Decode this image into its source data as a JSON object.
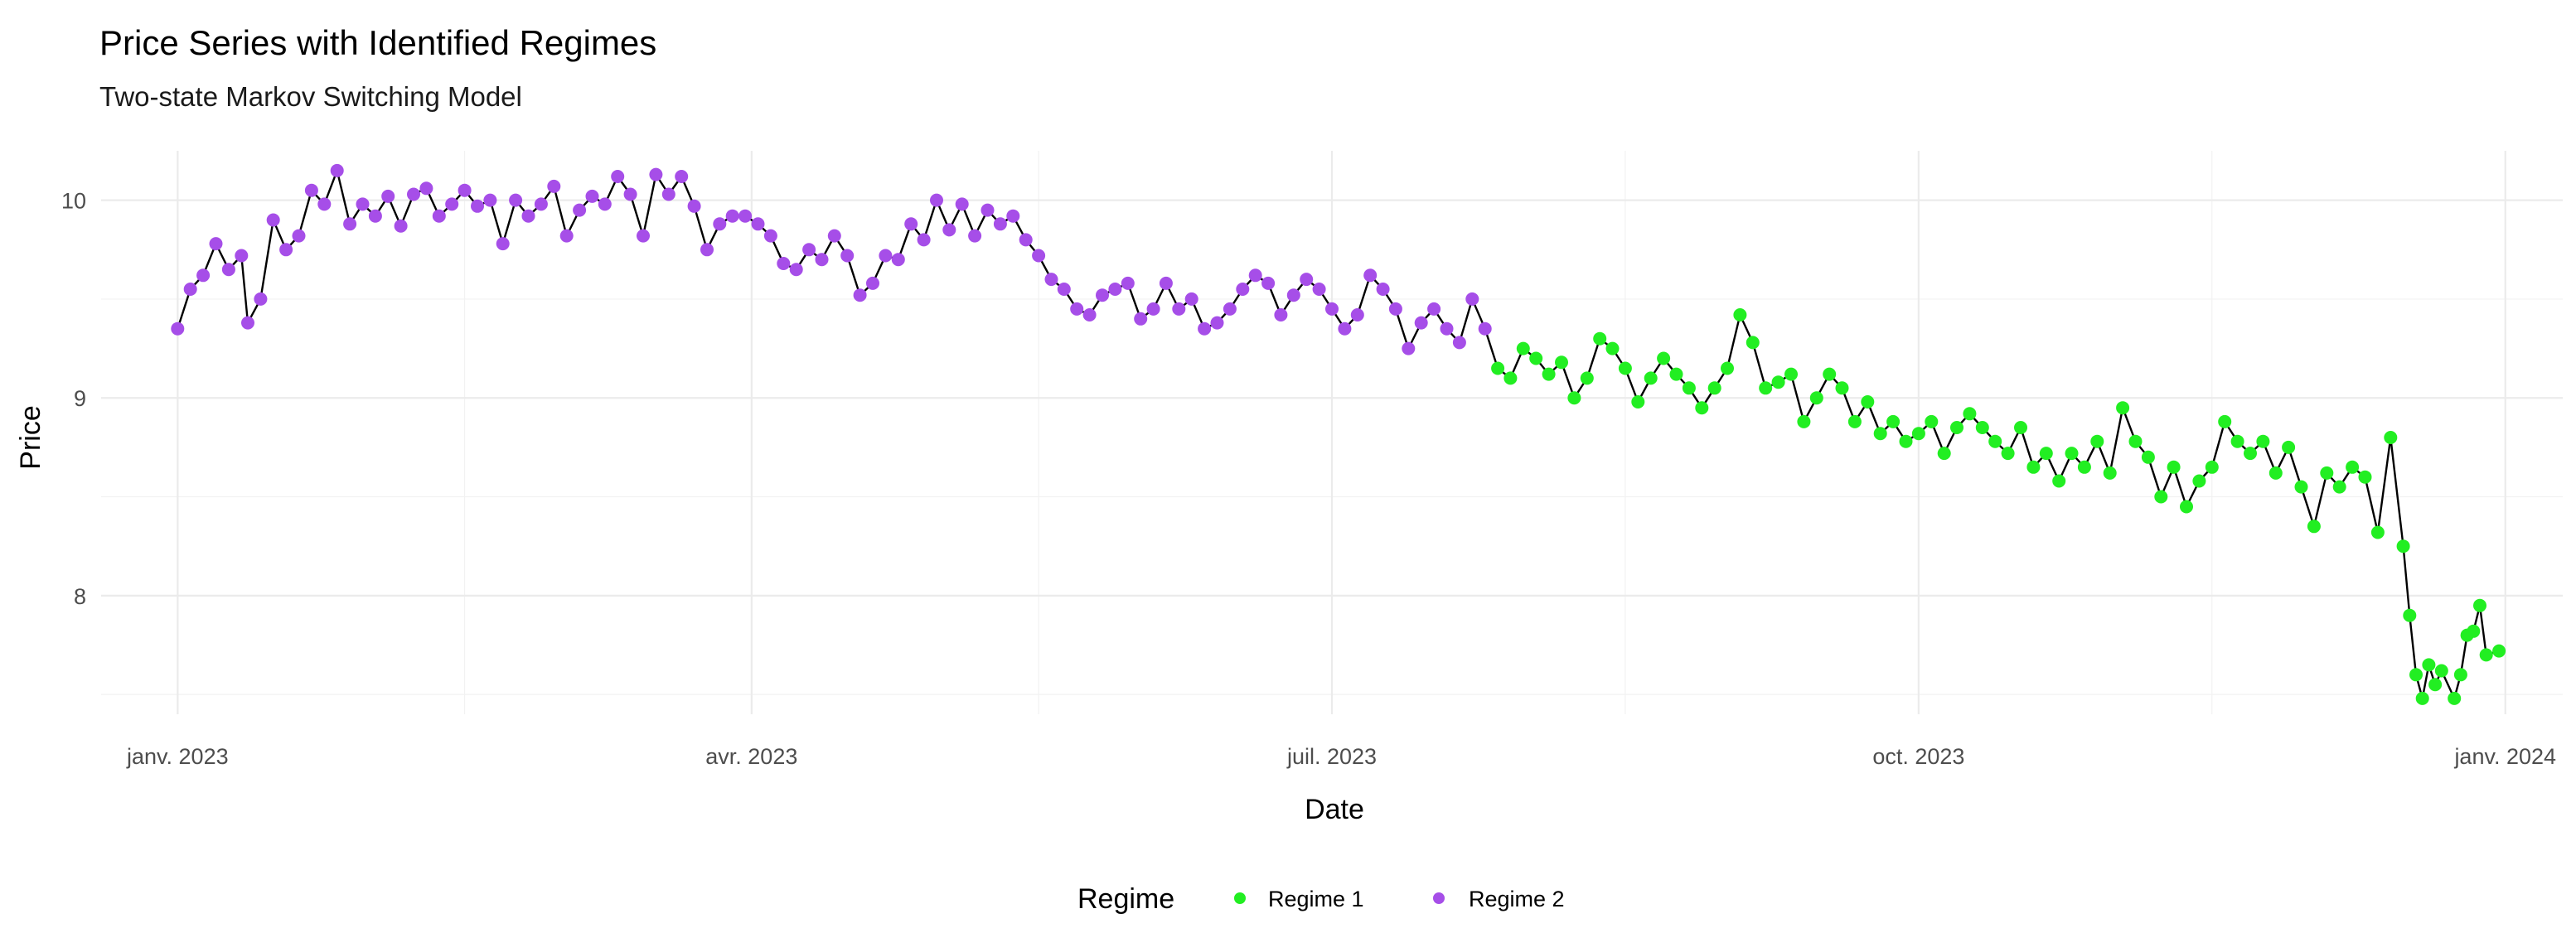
{
  "chart_data": {
    "type": "line",
    "title": "Price Series with Identified Regimes",
    "subtitle": "Two-state Markov Switching Model",
    "xlabel": "Date",
    "ylabel": "Price",
    "xlim": [
      "2022-12-20",
      "2024-01-10"
    ],
    "ylim": [
      7.4,
      10.25
    ],
    "y_ticks": [
      8,
      9,
      10
    ],
    "x_ticks": [
      {
        "date": "2023-01-01",
        "label": "janv. 2023"
      },
      {
        "date": "2023-04-01",
        "label": "avr. 2023"
      },
      {
        "date": "2023-07-01",
        "label": "juil. 2023"
      },
      {
        "date": "2023-10-01",
        "label": "oct. 2023"
      },
      {
        "date": "2024-01-01",
        "label": "janv. 2024"
      }
    ],
    "x_minor_ticks": [
      "2023-02-15",
      "2023-05-16",
      "2023-08-16",
      "2023-11-16"
    ],
    "grid": true,
    "legend": {
      "title": "Regime",
      "position": "bottom",
      "entries": [
        {
          "label": "Regime 1",
          "color": "#22ee22"
        },
        {
          "label": "Regime 2",
          "color": "#a64ee8"
        }
      ]
    },
    "line_color": "#000000",
    "series": [
      {
        "name": "Regime 2",
        "color": "#a64ee8",
        "points": [
          [
            "2023-01-01",
            9.35
          ],
          [
            "2023-01-03",
            9.55
          ],
          [
            "2023-01-05",
            9.62
          ],
          [
            "2023-01-07",
            9.78
          ],
          [
            "2023-01-09",
            9.65
          ],
          [
            "2023-01-11",
            9.72
          ],
          [
            "2023-01-12",
            9.38
          ],
          [
            "2023-01-14",
            9.5
          ],
          [
            "2023-01-16",
            9.9
          ],
          [
            "2023-01-18",
            9.75
          ],
          [
            "2023-01-20",
            9.82
          ],
          [
            "2023-01-22",
            10.05
          ],
          [
            "2023-01-24",
            9.98
          ],
          [
            "2023-01-26",
            10.15
          ],
          [
            "2023-01-28",
            9.88
          ],
          [
            "2023-01-30",
            9.98
          ],
          [
            "2023-02-01",
            9.92
          ],
          [
            "2023-02-03",
            10.02
          ],
          [
            "2023-02-05",
            9.87
          ],
          [
            "2023-02-07",
            10.03
          ],
          [
            "2023-02-09",
            10.06
          ],
          [
            "2023-02-11",
            9.92
          ],
          [
            "2023-02-13",
            9.98
          ],
          [
            "2023-02-15",
            10.05
          ],
          [
            "2023-02-17",
            9.97
          ],
          [
            "2023-02-19",
            10.0
          ],
          [
            "2023-02-21",
            9.78
          ],
          [
            "2023-02-23",
            10.0
          ],
          [
            "2023-02-25",
            9.92
          ],
          [
            "2023-02-27",
            9.98
          ],
          [
            "2023-03-01",
            10.07
          ],
          [
            "2023-03-03",
            9.82
          ],
          [
            "2023-03-05",
            9.95
          ],
          [
            "2023-03-07",
            10.02
          ],
          [
            "2023-03-09",
            9.98
          ],
          [
            "2023-03-11",
            10.12
          ],
          [
            "2023-03-13",
            10.03
          ],
          [
            "2023-03-15",
            9.82
          ],
          [
            "2023-03-17",
            10.13
          ],
          [
            "2023-03-19",
            10.03
          ],
          [
            "2023-03-21",
            10.12
          ],
          [
            "2023-03-23",
            9.97
          ],
          [
            "2023-03-25",
            9.75
          ],
          [
            "2023-03-27",
            9.88
          ],
          [
            "2023-03-29",
            9.92
          ],
          [
            "2023-03-31",
            9.92
          ],
          [
            "2023-04-02",
            9.88
          ],
          [
            "2023-04-04",
            9.82
          ],
          [
            "2023-04-06",
            9.68
          ],
          [
            "2023-04-08",
            9.65
          ],
          [
            "2023-04-10",
            9.75
          ],
          [
            "2023-04-12",
            9.7
          ],
          [
            "2023-04-14",
            9.82
          ],
          [
            "2023-04-16",
            9.72
          ],
          [
            "2023-04-18",
            9.52
          ],
          [
            "2023-04-20",
            9.58
          ],
          [
            "2023-04-22",
            9.72
          ],
          [
            "2023-04-24",
            9.7
          ],
          [
            "2023-04-26",
            9.88
          ],
          [
            "2023-04-28",
            9.8
          ],
          [
            "2023-04-30",
            10.0
          ],
          [
            "2023-05-02",
            9.85
          ],
          [
            "2023-05-04",
            9.98
          ],
          [
            "2023-05-06",
            9.82
          ],
          [
            "2023-05-08",
            9.95
          ],
          [
            "2023-05-10",
            9.88
          ],
          [
            "2023-05-12",
            9.92
          ],
          [
            "2023-05-14",
            9.8
          ],
          [
            "2023-05-16",
            9.72
          ],
          [
            "2023-05-18",
            9.6
          ],
          [
            "2023-05-20",
            9.55
          ],
          [
            "2023-05-22",
            9.45
          ],
          [
            "2023-05-24",
            9.42
          ],
          [
            "2023-05-26",
            9.52
          ],
          [
            "2023-05-28",
            9.55
          ],
          [
            "2023-05-30",
            9.58
          ],
          [
            "2023-06-01",
            9.4
          ],
          [
            "2023-06-03",
            9.45
          ],
          [
            "2023-06-05",
            9.58
          ],
          [
            "2023-06-07",
            9.45
          ],
          [
            "2023-06-09",
            9.5
          ],
          [
            "2023-06-11",
            9.35
          ],
          [
            "2023-06-13",
            9.38
          ],
          [
            "2023-06-15",
            9.45
          ],
          [
            "2023-06-17",
            9.55
          ],
          [
            "2023-06-19",
            9.62
          ],
          [
            "2023-06-21",
            9.58
          ],
          [
            "2023-06-23",
            9.42
          ],
          [
            "2023-06-25",
            9.52
          ],
          [
            "2023-06-27",
            9.6
          ],
          [
            "2023-06-29",
            9.55
          ],
          [
            "2023-07-01",
            9.45
          ],
          [
            "2023-07-03",
            9.35
          ],
          [
            "2023-07-05",
            9.42
          ],
          [
            "2023-07-07",
            9.62
          ],
          [
            "2023-07-09",
            9.55
          ],
          [
            "2023-07-11",
            9.45
          ],
          [
            "2023-07-13",
            9.25
          ],
          [
            "2023-07-15",
            9.38
          ],
          [
            "2023-07-17",
            9.45
          ],
          [
            "2023-07-19",
            9.35
          ],
          [
            "2023-07-21",
            9.28
          ],
          [
            "2023-07-23",
            9.5
          ],
          [
            "2023-07-25",
            9.35
          ]
        ]
      },
      {
        "name": "Regime 1",
        "color": "#22ee22",
        "points": [
          [
            "2023-07-27",
            9.15
          ],
          [
            "2023-07-29",
            9.1
          ],
          [
            "2023-07-31",
            9.25
          ],
          [
            "2023-08-02",
            9.2
          ],
          [
            "2023-08-04",
            9.12
          ],
          [
            "2023-08-06",
            9.18
          ],
          [
            "2023-08-08",
            9.0
          ],
          [
            "2023-08-10",
            9.1
          ],
          [
            "2023-08-12",
            9.3
          ],
          [
            "2023-08-14",
            9.25
          ],
          [
            "2023-08-16",
            9.15
          ],
          [
            "2023-08-18",
            8.98
          ],
          [
            "2023-08-20",
            9.1
          ],
          [
            "2023-08-22",
            9.2
          ],
          [
            "2023-08-24",
            9.12
          ],
          [
            "2023-08-26",
            9.05
          ],
          [
            "2023-08-28",
            8.95
          ],
          [
            "2023-08-30",
            9.05
          ],
          [
            "2023-09-01",
            9.15
          ],
          [
            "2023-09-03",
            9.42
          ],
          [
            "2023-09-05",
            9.28
          ],
          [
            "2023-09-07",
            9.05
          ],
          [
            "2023-09-09",
            9.08
          ],
          [
            "2023-09-11",
            9.12
          ],
          [
            "2023-09-13",
            8.88
          ],
          [
            "2023-09-15",
            9.0
          ],
          [
            "2023-09-17",
            9.12
          ],
          [
            "2023-09-19",
            9.05
          ],
          [
            "2023-09-21",
            8.88
          ],
          [
            "2023-09-23",
            8.98
          ],
          [
            "2023-09-25",
            8.82
          ],
          [
            "2023-09-27",
            8.88
          ],
          [
            "2023-09-29",
            8.78
          ],
          [
            "2023-10-01",
            8.82
          ],
          [
            "2023-10-03",
            8.88
          ],
          [
            "2023-10-05",
            8.72
          ],
          [
            "2023-10-07",
            8.85
          ],
          [
            "2023-10-09",
            8.92
          ],
          [
            "2023-10-11",
            8.85
          ],
          [
            "2023-10-13",
            8.78
          ],
          [
            "2023-10-15",
            8.72
          ],
          [
            "2023-10-17",
            8.85
          ],
          [
            "2023-10-19",
            8.65
          ],
          [
            "2023-10-21",
            8.72
          ],
          [
            "2023-10-23",
            8.58
          ],
          [
            "2023-10-25",
            8.72
          ],
          [
            "2023-10-27",
            8.65
          ],
          [
            "2023-10-29",
            8.78
          ],
          [
            "2023-10-31",
            8.62
          ],
          [
            "2023-11-02",
            8.95
          ],
          [
            "2023-11-04",
            8.78
          ],
          [
            "2023-11-06",
            8.7
          ],
          [
            "2023-11-08",
            8.5
          ],
          [
            "2023-11-10",
            8.65
          ],
          [
            "2023-11-12",
            8.45
          ],
          [
            "2023-11-14",
            8.58
          ],
          [
            "2023-11-16",
            8.65
          ],
          [
            "2023-11-18",
            8.88
          ],
          [
            "2023-11-20",
            8.78
          ],
          [
            "2023-11-22",
            8.72
          ],
          [
            "2023-11-24",
            8.78
          ],
          [
            "2023-11-26",
            8.62
          ],
          [
            "2023-11-28",
            8.75
          ],
          [
            "2023-11-30",
            8.55
          ],
          [
            "2023-12-02",
            8.35
          ],
          [
            "2023-12-04",
            8.62
          ],
          [
            "2023-12-06",
            8.55
          ],
          [
            "2023-12-08",
            8.65
          ],
          [
            "2023-12-10",
            8.6
          ],
          [
            "2023-12-12",
            8.32
          ],
          [
            "2023-12-14",
            8.8
          ],
          [
            "2023-12-16",
            8.25
          ],
          [
            "2023-12-17",
            7.9
          ],
          [
            "2023-12-18",
            7.6
          ],
          [
            "2023-12-19",
            7.48
          ],
          [
            "2023-12-20",
            7.65
          ],
          [
            "2023-12-21",
            7.55
          ],
          [
            "2023-12-22",
            7.62
          ],
          [
            "2023-12-24",
            7.48
          ],
          [
            "2023-12-25",
            7.6
          ],
          [
            "2023-12-26",
            7.8
          ],
          [
            "2023-12-27",
            7.82
          ],
          [
            "2023-12-28",
            7.95
          ],
          [
            "2023-12-29",
            7.7
          ],
          [
            "2023-12-31",
            7.72
          ]
        ]
      }
    ]
  }
}
